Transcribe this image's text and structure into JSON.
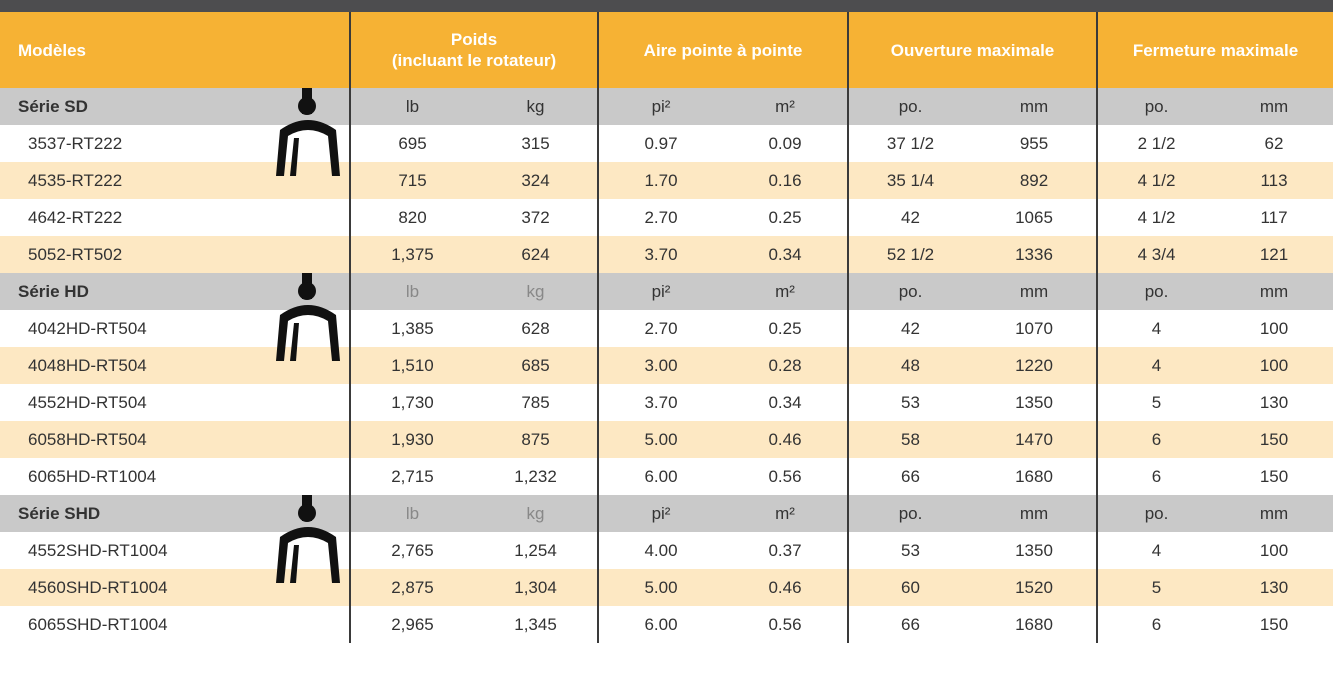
{
  "header": {
    "columns": [
      {
        "label": "Modèles"
      },
      {
        "label": "Poids",
        "sublabel": "(incluant le rotateur)"
      },
      {
        "label": "Aire pointe à pointe"
      },
      {
        "label": "Ouverture maximale"
      },
      {
        "label": "Fermeture maximale"
      }
    ]
  },
  "groups": [
    {
      "name": "Série SD",
      "units": [
        "lb",
        "kg",
        "pi²",
        "m²",
        "po.",
        "mm",
        "po.",
        "mm"
      ],
      "rows": [
        [
          "3537-RT222",
          "695",
          "315",
          "0.97",
          "0.09",
          "37 1/2",
          "955",
          "2 1/2",
          "62"
        ],
        [
          "4535-RT222",
          "715",
          "324",
          "1.70",
          "0.16",
          "35 1/4",
          "892",
          "4 1/2",
          "113"
        ],
        [
          "4642-RT222",
          "820",
          "372",
          "2.70",
          "0.25",
          "42",
          "1065",
          "4 1/2",
          "117"
        ],
        [
          "5052-RT502",
          "1,375",
          "624",
          "3.70",
          "0.34",
          "52 1/2",
          "1336",
          "4 3/4",
          "121"
        ]
      ]
    },
    {
      "name": "Série HD",
      "units": [
        "lb",
        "kg",
        "pi²",
        "m²",
        "po.",
        "mm",
        "po.",
        "mm"
      ],
      "rows": [
        [
          "4042HD-RT504",
          "1,385",
          "628",
          "2.70",
          "0.25",
          "42",
          "1070",
          "4",
          "100"
        ],
        [
          "4048HD-RT504",
          "1,510",
          "685",
          "3.00",
          "0.28",
          "48",
          "1220",
          "4",
          "100"
        ],
        [
          "4552HD-RT504",
          "1,730",
          "785",
          "3.70",
          "0.34",
          "53",
          "1350",
          "5",
          "130"
        ],
        [
          "6058HD-RT504",
          "1,930",
          "875",
          "5.00",
          "0.46",
          "58",
          "1470",
          "6",
          "150"
        ],
        [
          "6065HD-RT1004",
          "2,715",
          "1,232",
          "6.00",
          "0.56",
          "66",
          "1680",
          "6",
          "150"
        ]
      ]
    },
    {
      "name": "Série SHD",
      "units": [
        "lb",
        "kg",
        "pi²",
        "m²",
        "po.",
        "mm",
        "po.",
        "mm"
      ],
      "rows": [
        [
          "4552SHD-RT1004",
          "2,765",
          "1,254",
          "4.00",
          "0.37",
          "53",
          "1350",
          "4",
          "100"
        ],
        [
          "4560SHD-RT1004",
          "2,875",
          "1,304",
          "5.00",
          "0.46",
          "60",
          "1520",
          "5",
          "130"
        ],
        [
          "6065SHD-RT1004",
          "2,965",
          "1,345",
          "6.00",
          "0.56",
          "66",
          "1680",
          "6",
          "150"
        ]
      ]
    }
  ]
}
